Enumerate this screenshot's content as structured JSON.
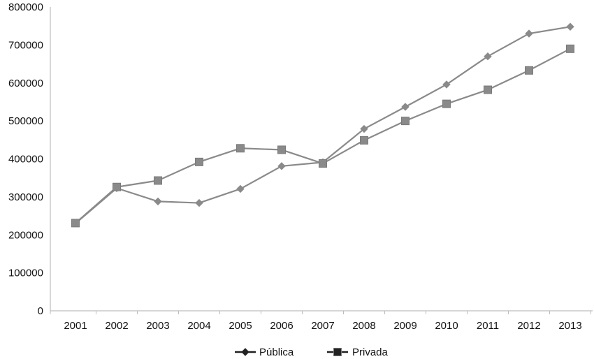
{
  "chart_data": {
    "type": "line",
    "title": "",
    "xlabel": "",
    "ylabel": "",
    "categories": [
      "2001",
      "2002",
      "2003",
      "2004",
      "2005",
      "2006",
      "2007",
      "2008",
      "2009",
      "2010",
      "2011",
      "2012",
      "2013"
    ],
    "ylim": [
      0,
      800000
    ],
    "yticks": [
      "0",
      "100000",
      "200000",
      "300000",
      "400000",
      "500000",
      "600000",
      "700000",
      "800000"
    ],
    "grid": false,
    "legend_position": "bottom-center",
    "series": [
      {
        "name": "Pública",
        "marker": "diamond",
        "color": "#8a8a8a",
        "values": [
          230000,
          323000,
          288000,
          284000,
          321000,
          381000,
          391000,
          479000,
          537000,
          596000,
          670000,
          730000,
          748000
        ]
      },
      {
        "name": "Privada",
        "marker": "square",
        "color": "#8a8a8a",
        "values": [
          231000,
          326000,
          343000,
          392000,
          428000,
          424000,
          388000,
          449000,
          500000,
          545000,
          582000,
          633000,
          690000
        ]
      }
    ],
    "legend_color": "#222222"
  }
}
